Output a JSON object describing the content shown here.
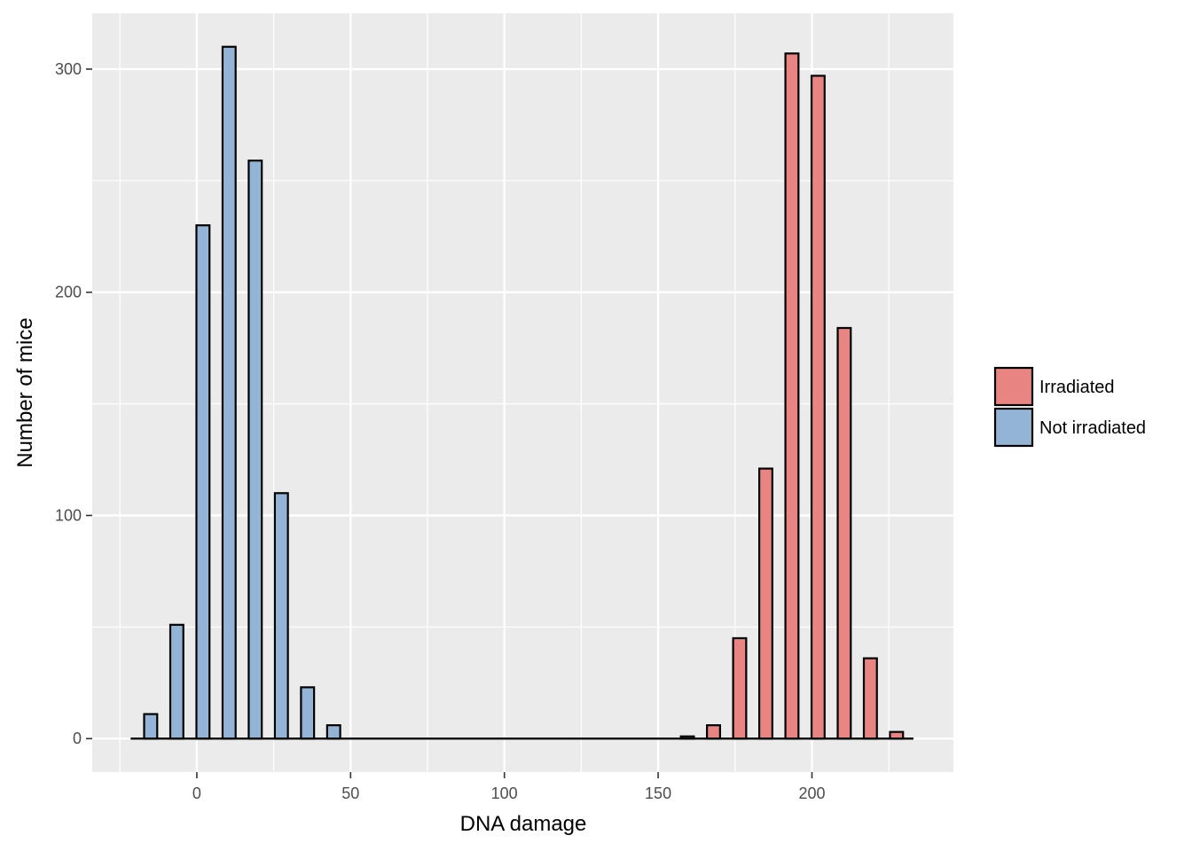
{
  "chart_data": {
    "type": "bar",
    "xlabel": "DNA damage",
    "ylabel": "Number of mice",
    "xlim": [
      -34,
      246
    ],
    "ylim": [
      -15,
      325
    ],
    "x_ticks": [
      0,
      50,
      100,
      150,
      200
    ],
    "x_minor_ticks": [
      -25,
      25,
      75,
      125,
      175,
      225
    ],
    "y_ticks": [
      0,
      100,
      200,
      300
    ],
    "y_minor_ticks": [
      50,
      150,
      250
    ],
    "grid": true,
    "legend_position": "right",
    "bin_width": 8.5,
    "bar_width": 4.25,
    "baseline": [
      -21.5,
      233
    ],
    "series": [
      {
        "name": "Irradiated",
        "color": "#e88482",
        "x": [
          159.5,
          168,
          176.5,
          185,
          193.5,
          202,
          210.5,
          219,
          227.5
        ],
        "values": [
          1,
          6,
          45,
          121,
          307,
          297,
          184,
          36,
          3
        ]
      },
      {
        "name": "Not irradiated",
        "color": "#93b4d5",
        "x": [
          -15,
          -6.5,
          2,
          10.5,
          19,
          27.5,
          36,
          44.5
        ],
        "values": [
          11,
          51,
          230,
          310,
          259,
          110,
          23,
          6
        ]
      }
    ]
  }
}
